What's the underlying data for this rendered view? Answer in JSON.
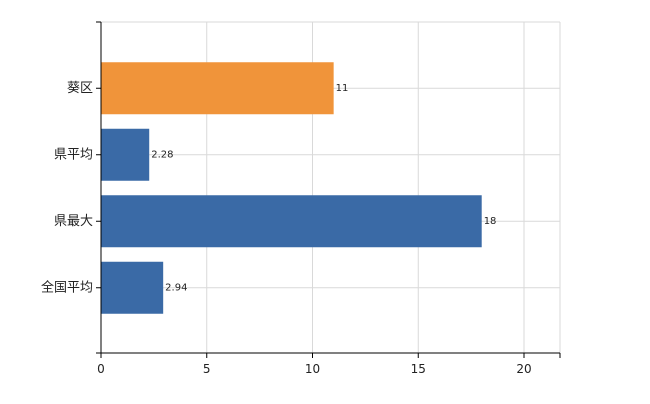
{
  "chart_data": {
    "type": "bar",
    "orientation": "horizontal",
    "title": "",
    "xlabel": "",
    "ylabel": "",
    "categories": [
      "葵区",
      "県平均",
      "県最大",
      "全国平均"
    ],
    "values": [
      11,
      2.28,
      18,
      2.94
    ],
    "data_labels": [
      "11",
      "2.28",
      "18",
      "2.94"
    ],
    "bar_colors": [
      "#f0943a",
      "#3a6aa6",
      "#3a6aa6",
      "#3a6aa6"
    ],
    "xlim": [
      0,
      21.5
    ],
    "x_ticks": [
      0,
      5,
      10,
      15,
      20
    ],
    "x_tick_labels": [
      "0",
      "5",
      "10",
      "15",
      "20"
    ],
    "grid": true,
    "legend": "none"
  }
}
